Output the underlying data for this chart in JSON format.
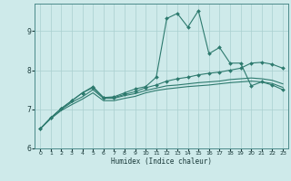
{
  "xlabel": "Humidex (Indice chaleur)",
  "bg_color": "#ceeaea",
  "line_color": "#2d7a6e",
  "grid_color": "#aacfcf",
  "ylim": [
    6.0,
    9.7
  ],
  "xlim": [
    -0.5,
    23.5
  ],
  "yticks": [
    6,
    7,
    8,
    9
  ],
  "xticks": [
    0,
    1,
    2,
    3,
    4,
    5,
    6,
    7,
    8,
    9,
    10,
    11,
    12,
    13,
    14,
    15,
    16,
    17,
    18,
    19,
    20,
    21,
    22,
    23
  ],
  "line1_x": [
    0,
    1,
    2,
    3,
    4,
    5,
    6,
    7,
    8,
    9,
    10,
    11,
    12,
    13,
    14,
    15,
    16,
    17,
    18,
    19,
    20,
    21,
    22,
    23
  ],
  "line1_y": [
    6.5,
    6.78,
    7.02,
    7.22,
    7.42,
    7.58,
    7.3,
    7.32,
    7.42,
    7.52,
    7.58,
    7.82,
    9.32,
    9.45,
    9.1,
    9.52,
    8.42,
    8.58,
    8.18,
    8.18,
    7.6,
    7.7,
    7.62,
    7.5
  ],
  "line2_x": [
    0,
    1,
    2,
    3,
    4,
    5,
    6,
    7,
    8,
    9,
    10,
    11,
    12,
    13,
    14,
    15,
    16,
    17,
    18,
    19,
    20,
    21,
    22,
    23
  ],
  "line2_y": [
    6.5,
    6.78,
    7.02,
    7.22,
    7.42,
    7.55,
    7.3,
    7.3,
    7.38,
    7.45,
    7.55,
    7.62,
    7.72,
    7.78,
    7.82,
    7.88,
    7.92,
    7.95,
    8.0,
    8.05,
    8.18,
    8.2,
    8.15,
    8.05
  ],
  "line3_x": [
    0,
    1,
    2,
    3,
    4,
    5,
    6,
    7,
    8,
    9,
    10,
    11,
    12,
    13,
    14,
    15,
    16,
    17,
    18,
    19,
    20,
    21,
    22,
    23
  ],
  "line3_y": [
    6.5,
    6.78,
    7.0,
    7.18,
    7.32,
    7.5,
    7.28,
    7.28,
    7.35,
    7.4,
    7.48,
    7.54,
    7.6,
    7.62,
    7.65,
    7.68,
    7.7,
    7.72,
    7.76,
    7.78,
    7.8,
    7.78,
    7.74,
    7.65
  ],
  "line4_x": [
    0,
    1,
    2,
    3,
    4,
    5,
    6,
    7,
    8,
    9,
    10,
    11,
    12,
    13,
    14,
    15,
    16,
    17,
    18,
    19,
    20,
    21,
    22,
    23
  ],
  "line4_y": [
    6.5,
    6.76,
    6.97,
    7.12,
    7.26,
    7.42,
    7.22,
    7.22,
    7.28,
    7.33,
    7.42,
    7.48,
    7.52,
    7.55,
    7.58,
    7.6,
    7.62,
    7.65,
    7.68,
    7.7,
    7.72,
    7.7,
    7.66,
    7.56
  ]
}
